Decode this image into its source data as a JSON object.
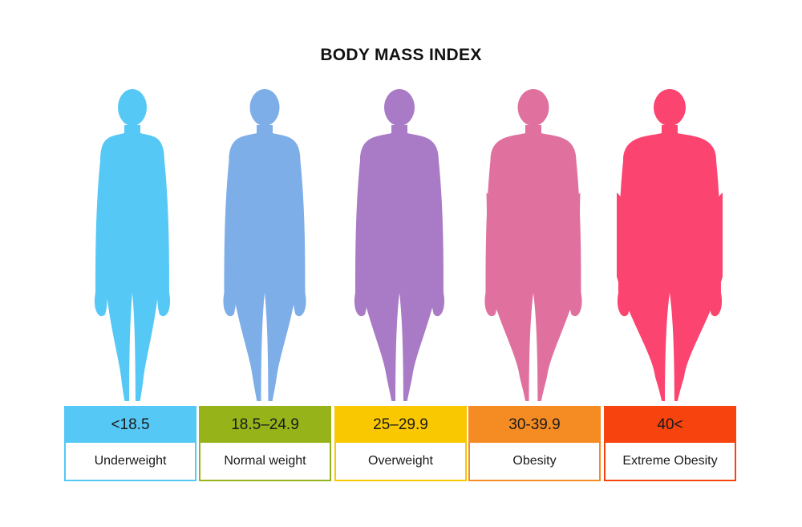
{
  "title": "BODY MASS INDEX",
  "categories": [
    {
      "range": "<18.5",
      "label": "Underweight",
      "figure_color": "#56C8F5",
      "box_color": "#56C8F5",
      "build": 0.0
    },
    {
      "range": "18.5–24.9",
      "label": "Normal weight",
      "figure_color": "#7EAEE8",
      "box_color": "#96B41A",
      "build": 0.25
    },
    {
      "range": "25–29.9",
      "label": "Overweight",
      "figure_color": "#A97BC6",
      "box_color": "#F9C800",
      "build": 0.5
    },
    {
      "range": "30-39.9",
      "label": "Obesity",
      "figure_color": "#E0719E",
      "box_color": "#F48B23",
      "build": 0.75
    },
    {
      "range": "40<",
      "label": "Extreme Obesity",
      "figure_color": "#FC4470",
      "box_color": "#F7430E",
      "build": 1.0
    }
  ]
}
